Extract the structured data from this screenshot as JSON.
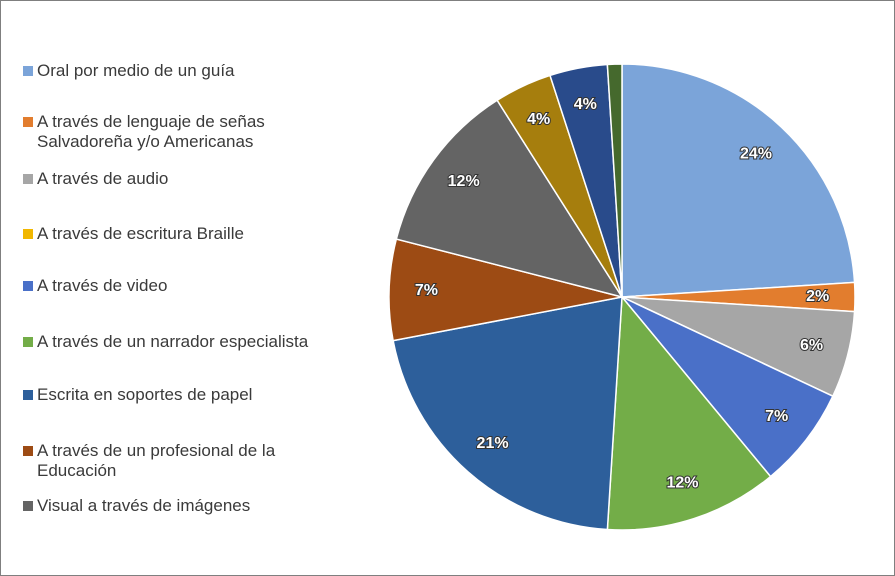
{
  "chart_data": {
    "type": "pie",
    "categories": [
      "Oral por medio de un guía",
      "A través de lenguaje de señas Salvadoreña y/o Americanas",
      "A través de audio",
      "A través de escritura Braille",
      "A través de video",
      "A través de un narrador especialista",
      "Escrita en soportes de papel",
      "A través de un profesional de la Educación",
      "Visual a través de imágenes",
      null,
      null,
      null
    ],
    "values": [
      24,
      2,
      6,
      0,
      7,
      12,
      21,
      7,
      12,
      4,
      4,
      1
    ],
    "value_labels": [
      "24%",
      "2%",
      "6%",
      null,
      "7%",
      "12%",
      "21%",
      "7%",
      "12%",
      "4%",
      "4%",
      null
    ],
    "colors": [
      "#7ba4d9",
      "#e27d2e",
      "#a6a6a6",
      "#f1b700",
      "#4a70c8",
      "#73ad48",
      "#2d5f9b",
      "#9d4b14",
      "#646464",
      "#a67e0d",
      "#294b8b",
      "#45692d"
    ],
    "legend": "left"
  }
}
